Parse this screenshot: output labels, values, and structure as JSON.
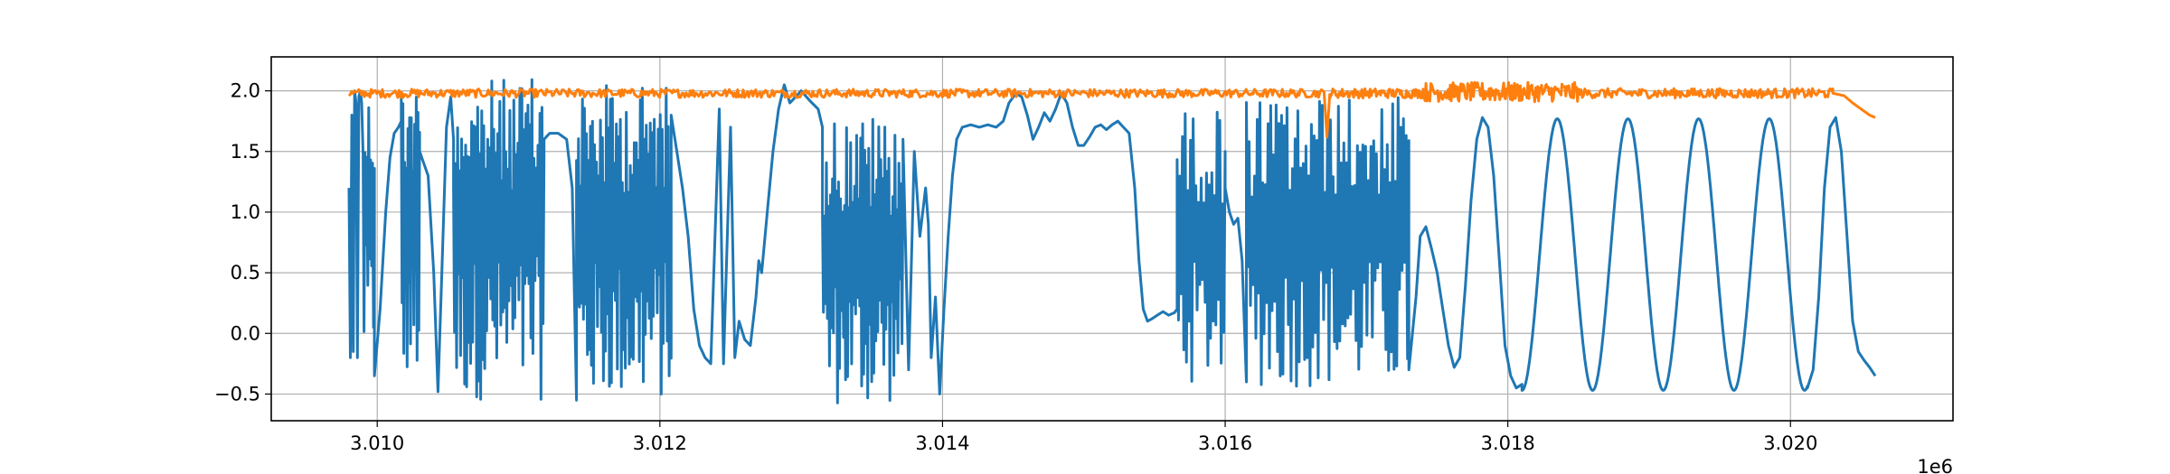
{
  "chart_data": {
    "type": "line",
    "title": "",
    "xlabel": "",
    "ylabel": "",
    "x_offset_label": "1e6",
    "xlim": [
      3009.25,
      3021.15
    ],
    "ylim": [
      -0.72,
      2.28
    ],
    "x_ticks": [
      3010,
      3012,
      3014,
      3016,
      3018,
      3020
    ],
    "x_tick_labels": [
      "3.010",
      "3.012",
      "3.014",
      "3.016",
      "3.018",
      "3.020"
    ],
    "y_ticks": [
      -0.5,
      0.0,
      0.5,
      1.0,
      1.5,
      2.0
    ],
    "y_tick_labels": [
      "−0.5",
      "0.0",
      "0.5",
      "1.0",
      "1.5",
      "2.0"
    ],
    "grid": true,
    "legend": "none",
    "series": [
      {
        "color": "#1f77b4",
        "segments": [
          {
            "kind": "path",
            "points": [
              [
                3009.8,
                1.2
              ],
              [
                3009.81,
                -0.2
              ],
              [
                3009.82,
                1.8
              ],
              [
                3009.83,
                -0.15
              ],
              [
                3009.84,
                2.0
              ],
              [
                3009.85,
                1.9
              ],
              [
                3009.86,
                -0.2
              ],
              [
                3009.87,
                1.95
              ],
              [
                3009.88,
                2.0
              ],
              [
                3009.89,
                1.9
              ]
            ]
          },
          {
            "kind": "burst",
            "x0": 3009.9,
            "x1": 3009.98,
            "low": -0.3,
            "high": 2.0,
            "n": 12
          },
          {
            "kind": "path",
            "points": [
              [
                3009.98,
                -0.35
              ],
              [
                3010.02,
                0.2
              ],
              [
                3010.06,
                1.0
              ],
              [
                3010.09,
                1.45
              ],
              [
                3010.12,
                1.65
              ],
              [
                3010.15,
                1.7
              ],
              [
                3010.17,
                1.75
              ]
            ]
          },
          {
            "kind": "burst",
            "x0": 3010.17,
            "x1": 3010.3,
            "low": -0.4,
            "high": 2.1,
            "n": 22
          },
          {
            "kind": "path",
            "points": [
              [
                3010.3,
                1.5
              ],
              [
                3010.36,
                1.3
              ],
              [
                3010.4,
                0.5
              ],
              [
                3010.43,
                -0.48
              ],
              [
                3010.46,
                0.6
              ],
              [
                3010.49,
                1.7
              ],
              [
                3010.52,
                1.95
              ],
              [
                3010.54,
                1.6
              ]
            ]
          },
          {
            "kind": "burst",
            "x0": 3010.54,
            "x1": 3011.18,
            "low": -0.55,
            "high": 2.1,
            "n": 90
          },
          {
            "kind": "path",
            "points": [
              [
                3011.18,
                1.6
              ],
              [
                3011.22,
                1.65
              ],
              [
                3011.28,
                1.65
              ],
              [
                3011.34,
                1.6
              ],
              [
                3011.38,
                1.2
              ],
              [
                3011.41,
                -0.55
              ]
            ]
          },
          {
            "kind": "burst",
            "x0": 3011.41,
            "x1": 3012.08,
            "low": -0.55,
            "high": 2.05,
            "n": 95
          },
          {
            "kind": "path",
            "points": [
              [
                3012.08,
                1.8
              ],
              [
                3012.12,
                1.5
              ],
              [
                3012.16,
                1.2
              ],
              [
                3012.2,
                0.8
              ],
              [
                3012.24,
                0.2
              ],
              [
                3012.28,
                -0.1
              ],
              [
                3012.32,
                -0.2
              ],
              [
                3012.36,
                -0.25
              ],
              [
                3012.42,
                1.85
              ],
              [
                3012.45,
                -0.25
              ],
              [
                3012.5,
                1.7
              ],
              [
                3012.53,
                -0.2
              ],
              [
                3012.56,
                0.1
              ],
              [
                3012.6,
                -0.05
              ],
              [
                3012.64,
                -0.1
              ],
              [
                3012.68,
                0.3
              ],
              [
                3012.7,
                0.6
              ],
              [
                3012.72,
                0.5
              ],
              [
                3012.76,
                1.0
              ],
              [
                3012.8,
                1.5
              ],
              [
                3012.84,
                1.85
              ],
              [
                3012.88,
                2.05
              ],
              [
                3012.92,
                1.9
              ],
              [
                3012.96,
                1.95
              ],
              [
                3013.0,
                2.0
              ],
              [
                3013.06,
                1.92
              ],
              [
                3013.12,
                1.85
              ],
              [
                3013.15,
                1.7
              ]
            ]
          },
          {
            "kind": "burst",
            "x0": 3013.15,
            "x1": 3013.72,
            "low": -0.6,
            "high": 1.8,
            "n": 80
          },
          {
            "kind": "path",
            "points": [
              [
                3013.72,
                1.6
              ],
              [
                3013.76,
                -0.3
              ],
              [
                3013.8,
                1.5
              ],
              [
                3013.84,
                0.8
              ],
              [
                3013.88,
                1.2
              ],
              [
                3013.9,
                0.9
              ],
              [
                3013.92,
                -0.2
              ],
              [
                3013.95,
                0.3
              ],
              [
                3013.98,
                -0.5
              ],
              [
                3014.01,
                0.2
              ],
              [
                3014.04,
                0.8
              ],
              [
                3014.07,
                1.3
              ],
              [
                3014.1,
                1.6
              ],
              [
                3014.14,
                1.7
              ],
              [
                3014.2,
                1.72
              ],
              [
                3014.26,
                1.7
              ],
              [
                3014.32,
                1.72
              ],
              [
                3014.38,
                1.7
              ],
              [
                3014.43,
                1.75
              ],
              [
                3014.47,
                1.9
              ],
              [
                3014.52,
                1.98
              ],
              [
                3014.56,
                1.95
              ],
              [
                3014.6,
                1.8
              ],
              [
                3014.64,
                1.6
              ],
              [
                3014.68,
                1.7
              ],
              [
                3014.72,
                1.82
              ],
              [
                3014.76,
                1.75
              ],
              [
                3014.8,
                1.85
              ],
              [
                3014.84,
                1.98
              ],
              [
                3014.88,
                1.9
              ],
              [
                3014.92,
                1.7
              ],
              [
                3014.96,
                1.55
              ],
              [
                3015.0,
                1.55
              ],
              [
                3015.04,
                1.62
              ],
              [
                3015.08,
                1.7
              ],
              [
                3015.12,
                1.72
              ],
              [
                3015.16,
                1.68
              ],
              [
                3015.2,
                1.72
              ],
              [
                3015.24,
                1.75
              ],
              [
                3015.28,
                1.7
              ],
              [
                3015.32,
                1.65
              ],
              [
                3015.36,
                1.2
              ],
              [
                3015.39,
                0.6
              ],
              [
                3015.42,
                0.2
              ],
              [
                3015.45,
                0.1
              ],
              [
                3015.48,
                0.12
              ],
              [
                3015.52,
                0.15
              ],
              [
                3015.56,
                0.18
              ],
              [
                3015.6,
                0.15
              ],
              [
                3015.64,
                0.17
              ],
              [
                3015.66,
                0.2
              ]
            ]
          },
          {
            "kind": "burst",
            "x0": 3015.66,
            "x1": 3016.0,
            "low": -0.4,
            "high": 1.85,
            "n": 36
          },
          {
            "kind": "path",
            "points": [
              [
                3016.0,
                1.2
              ],
              [
                3016.03,
                1.0
              ],
              [
                3016.06,
                0.9
              ],
              [
                3016.09,
                0.95
              ],
              [
                3016.12,
                0.6
              ],
              [
                3016.15,
                -0.4
              ]
            ]
          },
          {
            "kind": "burst",
            "x0": 3016.15,
            "x1": 3017.3,
            "low": -0.45,
            "high": 1.95,
            "n": 120
          },
          {
            "kind": "path",
            "points": [
              [
                3017.3,
                -0.3
              ],
              [
                3017.35,
                0.3
              ],
              [
                3017.38,
                0.8
              ],
              [
                3017.42,
                0.88
              ],
              [
                3017.46,
                0.7
              ],
              [
                3017.5,
                0.5
              ],
              [
                3017.54,
                0.2
              ],
              [
                3017.58,
                -0.1
              ],
              [
                3017.62,
                -0.28
              ],
              [
                3017.66,
                -0.2
              ],
              [
                3017.7,
                0.4
              ],
              [
                3017.74,
                1.1
              ],
              [
                3017.78,
                1.6
              ],
              [
                3017.82,
                1.78
              ],
              [
                3017.86,
                1.7
              ],
              [
                3017.9,
                1.3
              ],
              [
                3017.94,
                0.6
              ],
              [
                3017.98,
                -0.1
              ],
              [
                3018.02,
                -0.35
              ],
              [
                3018.06,
                -0.45
              ],
              [
                3018.1,
                -0.42
              ]
            ]
          },
          {
            "kind": "sine",
            "x0": 3018.1,
            "x1": 3020.12,
            "period": 0.5,
            "low": -0.47,
            "high": 1.77,
            "phase_x": 3018.1,
            "n": 300
          },
          {
            "kind": "path",
            "points": [
              [
                3020.12,
                -0.45
              ],
              [
                3020.16,
                -0.3
              ],
              [
                3020.2,
                0.3
              ],
              [
                3020.24,
                1.2
              ],
              [
                3020.28,
                1.7
              ],
              [
                3020.32,
                1.78
              ],
              [
                3020.36,
                1.5
              ],
              [
                3020.4,
                0.8
              ],
              [
                3020.44,
                0.1
              ],
              [
                3020.48,
                -0.15
              ],
              [
                3020.52,
                -0.22
              ],
              [
                3020.56,
                -0.28
              ],
              [
                3020.6,
                -0.35
              ]
            ]
          }
        ]
      },
      {
        "color": "#ff7f0e",
        "segments": [
          {
            "kind": "noise",
            "x0": 3009.8,
            "x1": 3016.7,
            "mean": 1.98,
            "amp": 0.035,
            "n": 700
          },
          {
            "kind": "path",
            "points": [
              [
                3016.7,
                1.98
              ],
              [
                3016.72,
                1.62
              ],
              [
                3016.74,
                1.97
              ]
            ]
          },
          {
            "kind": "noise",
            "x0": 3016.74,
            "x1": 3017.4,
            "mean": 1.98,
            "amp": 0.04,
            "n": 90
          },
          {
            "kind": "noise",
            "x0": 3017.4,
            "x1": 3018.5,
            "mean": 1.99,
            "amp": 0.08,
            "n": 160
          },
          {
            "kind": "noise",
            "x0": 3018.5,
            "x1": 3020.3,
            "mean": 1.98,
            "amp": 0.04,
            "n": 200
          },
          {
            "kind": "path",
            "points": [
              [
                3020.3,
                1.98
              ],
              [
                3020.38,
                1.96
              ],
              [
                3020.44,
                1.9
              ],
              [
                3020.5,
                1.85
              ],
              [
                3020.56,
                1.8
              ],
              [
                3020.6,
                1.78
              ]
            ]
          }
        ]
      }
    ]
  }
}
